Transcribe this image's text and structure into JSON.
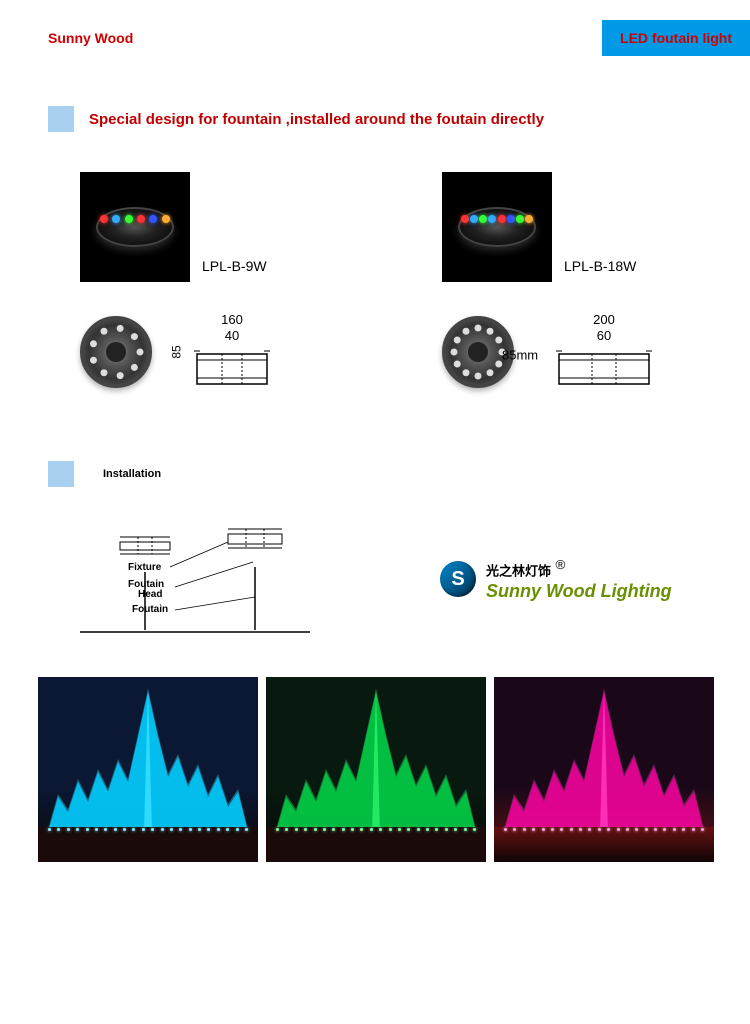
{
  "header": {
    "brand": "Sunny Wood",
    "badge": "LED foutain light"
  },
  "section1": {
    "heading": "Special design for fountain ,installed around the foutain directly"
  },
  "products": [
    {
      "label": "LPL-B-9W",
      "dims": {
        "width": "160",
        "inner": "40",
        "height": "85",
        "height_unit": ""
      },
      "led_colors": [
        "#ff3333",
        "#33aaff",
        "#33ff33",
        "#ff3333",
        "#3355ff",
        "#ffaa33"
      ],
      "led_count": 9
    },
    {
      "label": "LPL-B-18W",
      "dims": {
        "width": "200",
        "inner": "60",
        "height": "85mm",
        "height_unit": ""
      },
      "led_colors": [
        "#ff3333",
        "#33aaff",
        "#33ff33",
        "#33aaff",
        "#ff3333",
        "#3355ff",
        "#33ff33",
        "#ffaa33"
      ],
      "led_count": 12
    }
  ],
  "installation": {
    "label": "Installation",
    "diagram_labels": {
      "fixture": "Fixture",
      "head": "Foutain Head",
      "foutain": "Foutain"
    }
  },
  "logo": {
    "symbol": "S",
    "cn": "光之林灯饰",
    "reg": "®",
    "en": "Sunny Wood Lighting"
  },
  "fountains": [
    {
      "sky": "#0a1833",
      "main": "#00ccff",
      "glow": "#33ddff",
      "dot": "#88eeff"
    },
    {
      "sky": "#081a10",
      "main": "#00cc44",
      "glow": "#22ee66",
      "dot": "#88ffaa"
    },
    {
      "sky": "#1a0818",
      "main": "#ee0099",
      "glow": "#ff33bb",
      "dot": "#ffaadd",
      "ground": "#661111"
    }
  ],
  "colors": {
    "brand_red": "#d10000",
    "badge_bg": "#0099e6",
    "heading_red": "#c00000",
    "bullet_blue": "#a8d0f0"
  }
}
